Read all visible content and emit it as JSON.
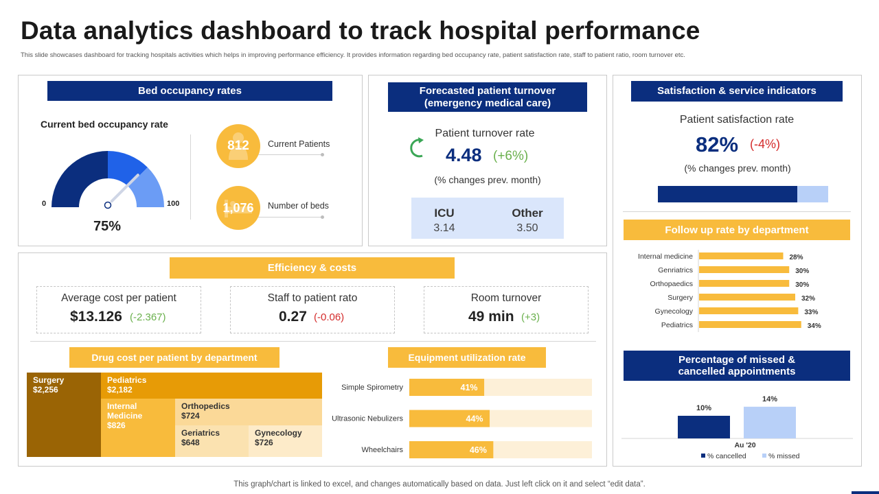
{
  "title": "Data analytics dashboard to track hospital performance",
  "subtitle": "This slide showcases dashboard for tracking hospitals activities which helps in improving performance efficiency. It provides information regarding bed occupancy rate, patient satisfaction rate, staff to patient ratio, room turnover etc.",
  "footer": "This graph/chart is linked to excel,  and changes automatically based on data. Just left click on it and select “edit data”.",
  "colors": {
    "navy": "#0b2e7e",
    "yellow": "#f8bb3c",
    "green": "#6ab04c",
    "red": "#d42b2b"
  },
  "bed": {
    "header": "Bed occupancy rates",
    "gauge_title": "Current bed occupancy rate",
    "min_label": "0",
    "max_label": "100",
    "value_label": "75%",
    "current_patients_value": "812",
    "current_patients_label": "Current Patients",
    "number_of_beds_value": "1,076",
    "number_of_beds_label": "Number of beds",
    "icon_patients": "patient-icon",
    "icon_beds": "bed-icon"
  },
  "turnover": {
    "header_line1": "Forecasted patient turnover",
    "header_line2": "(emergency medical care)",
    "label": "Patient turnover  rate",
    "value": "4.48",
    "change": "(+6%)",
    "note": "(% changes prev. month)",
    "icu_label": "ICU",
    "icu_value": "3.14",
    "other_label": "Other",
    "other_value": "3.50",
    "icon": "refresh-icon"
  },
  "satisfaction": {
    "header": "Satisfaction  & service indicators",
    "label": "Patient satisfaction rate",
    "value": "82%",
    "change": "(-4%)",
    "note": "(% changes prev. month)",
    "bar_fill": 0.82
  },
  "efficiency": {
    "header": "Efficiency & costs",
    "avg_cost_label": "Average cost per patient",
    "avg_cost_value": "$13.126",
    "avg_cost_change": "(-2.367)",
    "staff_label": "Staff to patient rato",
    "staff_value": "0.27",
    "staff_change": "(-0.06)",
    "room_label": "Room turnover",
    "room_value": "49 min",
    "room_change": "(+3)"
  },
  "drug_cost": {
    "header": "Drug cost per patient by department",
    "items": [
      {
        "name": "Surgery",
        "value": "$2,256"
      },
      {
        "name": "Pediatrics",
        "value": "$2,182"
      },
      {
        "name": "Internal Medicine",
        "value": "$826"
      },
      {
        "name": "Orthopedics",
        "value": "$724"
      },
      {
        "name": "Geriatrics",
        "value": "$648"
      },
      {
        "name": "Gynecology",
        "value": "$726"
      }
    ]
  },
  "equipment": {
    "header": "Equipment utilization rate"
  },
  "followup": {
    "header": "Follow up rate by department"
  },
  "missed": {
    "header_line1": "Percentage of missed &",
    "header_line2": "cancelled appointments"
  },
  "chart_data": [
    {
      "type": "gauge",
      "title": "Current bed occupancy rate",
      "value": 75,
      "min": 0,
      "max": 100
    },
    {
      "type": "bar",
      "orientation": "horizontal",
      "title": "Follow up rate by department",
      "categories": [
        "Internal medicine",
        "Genriatrics",
        "Orthopaedics",
        "Surgery",
        "Gynecology",
        "Pediatrics"
      ],
      "values": [
        28,
        30,
        30,
        32,
        33,
        34
      ],
      "value_labels": [
        "28%",
        "30%",
        "30%",
        "32%",
        "33%",
        "34%"
      ],
      "xlim": [
        0,
        40
      ]
    },
    {
      "type": "bar",
      "orientation": "horizontal",
      "title": "Equipment utilization rate",
      "categories": [
        "Simple Spirometry",
        "Ultrasonic Nebulizers",
        "Wheelchairs"
      ],
      "values": [
        41,
        44,
        46
      ],
      "value_labels": [
        "41%",
        "44%",
        "46%"
      ],
      "xlim": [
        0,
        100
      ]
    },
    {
      "type": "bar",
      "title": "Percentage of missed & cancelled appointments",
      "categories": [
        "Au '20"
      ],
      "series": [
        {
          "name": "% cancelled",
          "values": [
            10
          ],
          "label": "10%",
          "color": "#0b2e7e"
        },
        {
          "name": "% missed",
          "values": [
            14
          ],
          "label": "14%",
          "color": "#b8d0f8"
        }
      ],
      "ylim": [
        0,
        20
      ],
      "legend": "bottom"
    },
    {
      "type": "treemap",
      "title": "Drug cost per patient by department",
      "labels": [
        "Surgery",
        "Pediatrics",
        "Internal Medicine",
        "Orthopedics",
        "Geriatrics",
        "Gynecology"
      ],
      "values": [
        2256,
        2182,
        826,
        724,
        648,
        726
      ]
    }
  ]
}
